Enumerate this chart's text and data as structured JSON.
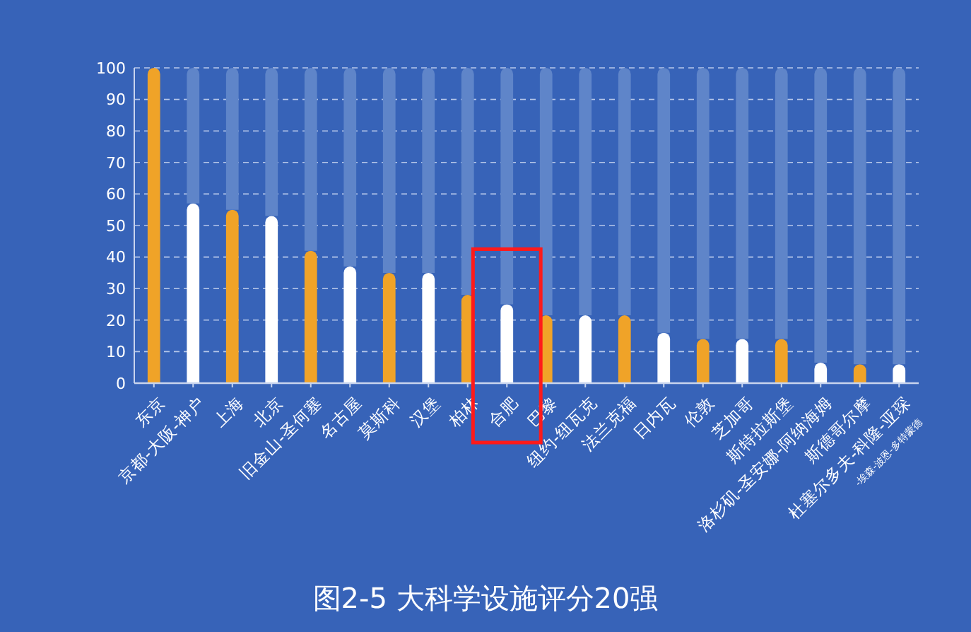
{
  "chart_data": {
    "type": "bar",
    "title": "图2-5 大科学设施评分20强",
    "stacked": true,
    "categories": [
      "东京",
      "京都-大阪-神户",
      "上海",
      "北京",
      "旧金山-圣何塞",
      "名古屋",
      "莫斯科",
      "汉堡",
      "柏林",
      "合肥",
      "巴黎",
      "纽约-纽瓦克",
      "法兰克福",
      "日内瓦",
      "伦敦",
      "芝加哥",
      "斯特拉斯堡",
      "洛杉矶-圣安娜-阿纳海姆",
      "斯德哥尔摩",
      "杜塞尔多夫-科隆-亚琛$_{-埃森-波恩-多特蒙德}$"
    ],
    "series": [
      {
        "colors": [
          "#f0a328",
          "#ffffff",
          "#f0a328",
          "#ffffff",
          "#f0a328",
          "#ffffff",
          "#f0a328",
          "#ffffff",
          "#f0a328",
          "#ffffff",
          "#f0a328",
          "#ffffff",
          "#f0a328",
          "#ffffff",
          "#f0a328",
          "#ffffff",
          "#f0a328",
          "#ffffff",
          "#f0a328",
          "#ffffff"
        ],
        "values": [
          100,
          57,
          55,
          53,
          42,
          37,
          35,
          35,
          28,
          25,
          21.5,
          21.5,
          21.5,
          16,
          14,
          14,
          14,
          6.5,
          6,
          6
        ]
      },
      {
        "color": "#5f85c9",
        "values": [
          0,
          43,
          45,
          47,
          58,
          63,
          65,
          65,
          72,
          75,
          78.5,
          78.5,
          78.5,
          84,
          86,
          86,
          86,
          93.5,
          94,
          94
        ]
      }
    ],
    "ylim": [
      0,
      100
    ],
    "yticks": [
      0,
      10,
      20,
      30,
      40,
      50,
      60,
      70,
      80,
      90,
      100
    ],
    "grid": "y"
  }
}
